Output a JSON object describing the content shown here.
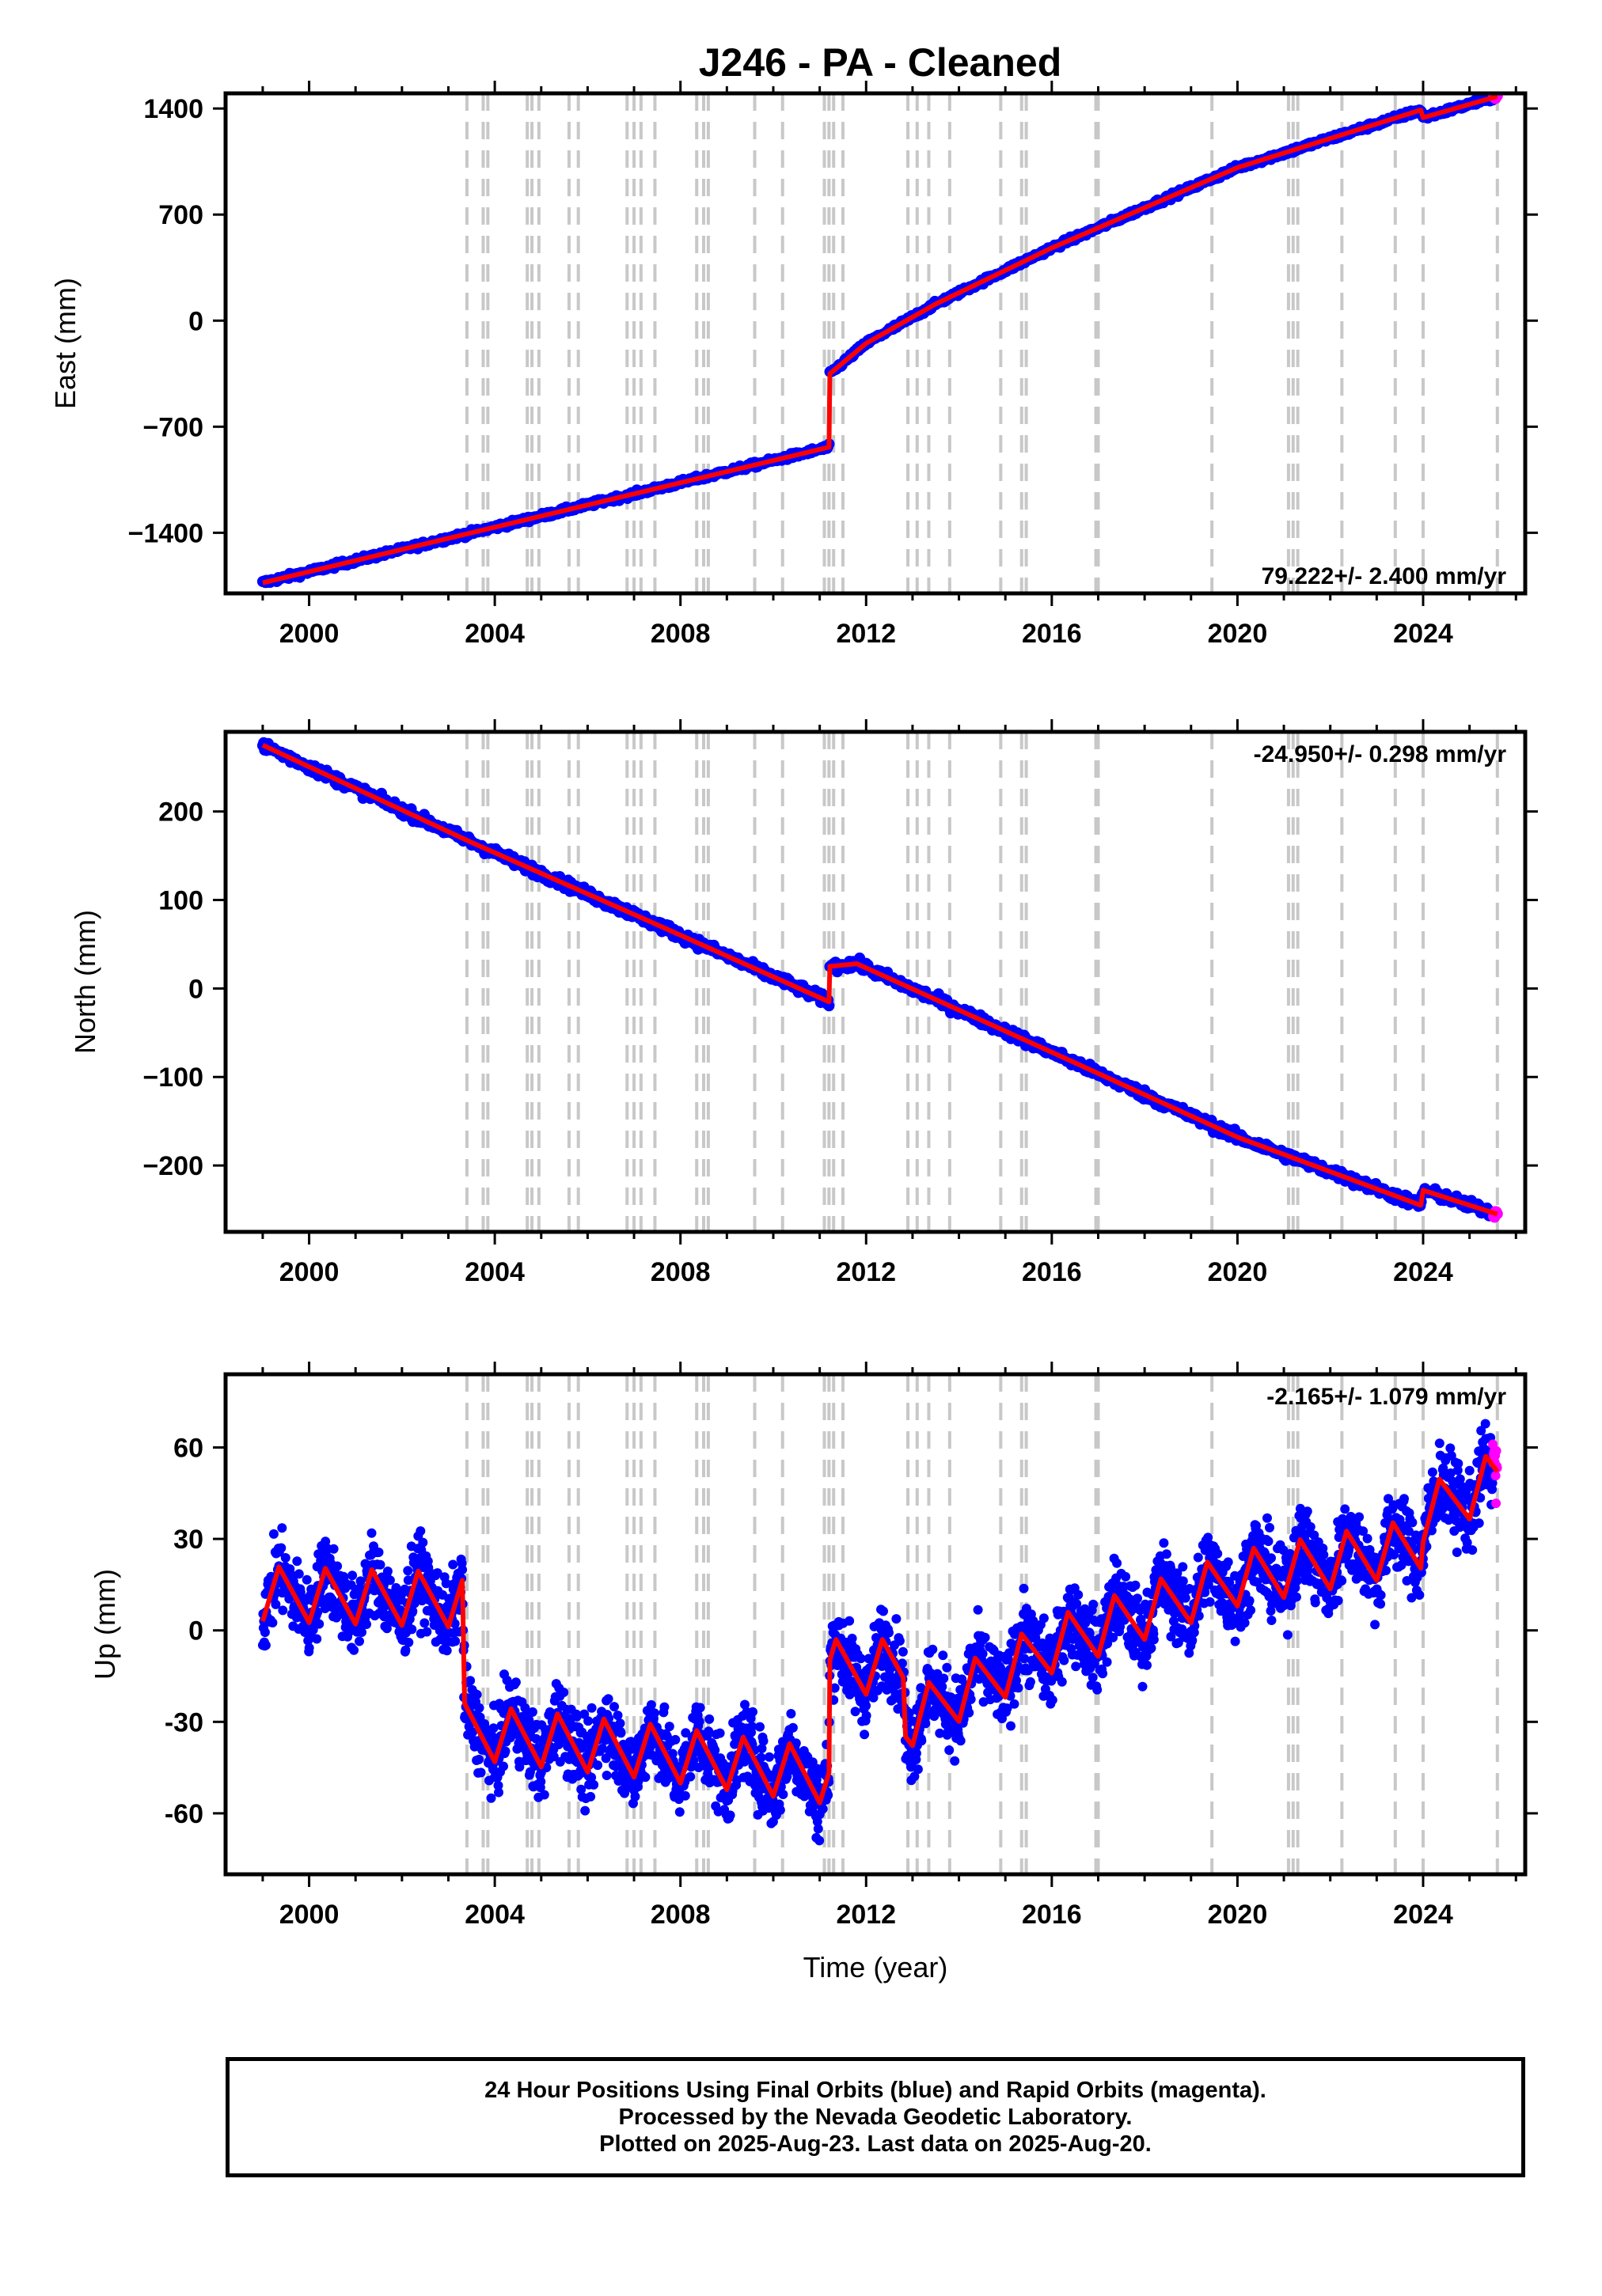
{
  "title": "J246  - PA - Cleaned",
  "chart_data": [
    {
      "type": "scatter",
      "ylabel": "East (mm)",
      "xlabel": "",
      "xlim": [
        1998.2,
        2026.2
      ],
      "ylim": [
        -1800,
        1500
      ],
      "xticks": [
        2000,
        2004,
        2008,
        2012,
        2016,
        2020,
        2024
      ],
      "yticks": [
        -1400,
        -700,
        0,
        700,
        1400
      ],
      "ytick_labels": [
        "−1400",
        "−700",
        "0",
        "700",
        "1400"
      ],
      "rate": "79.222+/- 2.400 mm/yr",
      "rate_position": "bottom-right",
      "trend": [
        [
          1999.0,
          -1730
        ],
        [
          2011.2,
          -835
        ],
        [
          2011.22,
          -350
        ],
        [
          2012.0,
          -150
        ],
        [
          2013.5,
          110
        ],
        [
          2016.0,
          480
        ],
        [
          2020.0,
          1010
        ],
        [
          2023.95,
          1390
        ],
        [
          2024.0,
          1340
        ],
        [
          2025.6,
          1480
        ]
      ],
      "scatter_noise": 12
    },
    {
      "type": "scatter",
      "ylabel": "North (mm)",
      "xlabel": "",
      "xlim": [
        1998.2,
        2026.2
      ],
      "ylim": [
        -275,
        290
      ],
      "xticks": [
        2000,
        2004,
        2008,
        2012,
        2016,
        2020,
        2024
      ],
      "yticks": [
        -200,
        -100,
        0,
        100,
        200
      ],
      "ytick_labels": [
        "−200",
        "−100",
        "0",
        "100",
        "200"
      ],
      "rate": "-24.950+/- 0.298 mm/yr",
      "rate_position": "top-right",
      "trend": [
        [
          1999.0,
          275
        ],
        [
          2003.5,
          165
        ],
        [
          2007.5,
          72
        ],
        [
          2011.2,
          -15
        ],
        [
          2011.22,
          25
        ],
        [
          2011.8,
          28
        ],
        [
          2016.0,
          -72
        ],
        [
          2020.0,
          -168
        ],
        [
          2023.95,
          -245
        ],
        [
          2024.0,
          -228
        ],
        [
          2025.6,
          -255
        ]
      ],
      "scatter_noise": 4
    },
    {
      "type": "scatter",
      "ylabel": "Up (mm)",
      "xlabel": "Time (year)",
      "xlim": [
        1998.2,
        2026.2
      ],
      "ylim": [
        -80,
        84
      ],
      "xticks": [
        2000,
        2004,
        2008,
        2012,
        2016,
        2020,
        2024
      ],
      "yticks": [
        -60,
        -30,
        0,
        30,
        60
      ],
      "ytick_labels": [
        "-60",
        "-30",
        "0",
        "30",
        "60"
      ],
      "rate": "-2.165+/- 1.079 mm/yr",
      "rate_position": "top-right",
      "trend": [
        [
          1999.0,
          12
        ],
        [
          2003.3,
          10
        ],
        [
          2003.35,
          -33
        ],
        [
          2007.5,
          -40
        ],
        [
          2011.2,
          -48
        ],
        [
          2011.22,
          -12
        ],
        [
          2012.8,
          -12
        ],
        [
          2012.85,
          -30
        ],
        [
          2016.0,
          -5
        ],
        [
          2020.0,
          17
        ],
        [
          2023.95,
          28
        ],
        [
          2024.0,
          38
        ],
        [
          2025.6,
          50
        ]
      ],
      "seasonal_amplitude": 9,
      "scatter_noise": 9
    }
  ],
  "series": [
    {
      "name": "Final Orbits",
      "color": "#0000ff"
    },
    {
      "name": "Rapid Orbits",
      "color": "#ff00ff"
    },
    {
      "name": "Fit",
      "color": "#ff0000"
    }
  ],
  "event_lines": [
    2003.4,
    2003.75,
    2003.85,
    2004.7,
    2004.8,
    2004.95,
    2005.6,
    2005.8,
    2006.85,
    2007.0,
    2007.15,
    2007.45,
    2008.35,
    2008.5,
    2008.6,
    2009.6,
    2010.2,
    2011.1,
    2011.2,
    2011.3,
    2011.5,
    2012.9,
    2013.1,
    2013.35,
    2013.8,
    2014.9,
    2015.35,
    2015.45,
    2016.95,
    2017.0,
    2019.45,
    2021.1,
    2021.2,
    2021.3,
    2022.25,
    2023.4,
    2024.0,
    2025.6
  ],
  "rapid_orbit_start": 2025.5,
  "caption": [
    "24 Hour Positions Using Final Orbits (blue) and Rapid Orbits (magenta).",
    "Processed by the Nevada Geodetic Laboratory.",
    "Plotted on 2025-Aug-23. Last data on 2025-Aug-20."
  ]
}
